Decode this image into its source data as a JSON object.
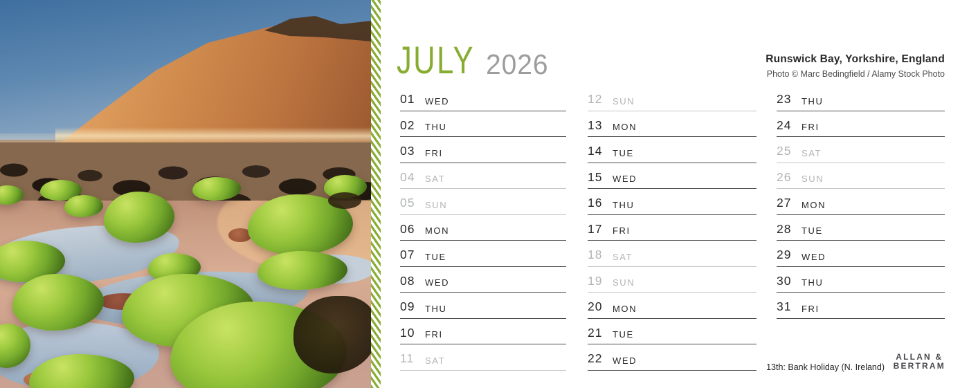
{
  "header": {
    "month": "JULY",
    "year": "2026",
    "location": "Runswick Bay, Yorkshire, England",
    "credit": "Photo © Marc Bedingfield / Alamy Stock Photo"
  },
  "calendar": {
    "columns": [
      {
        "days": [
          {
            "num": "01",
            "day": "WED",
            "weekend": false
          },
          {
            "num": "02",
            "day": "THU",
            "weekend": false
          },
          {
            "num": "03",
            "day": "FRI",
            "weekend": false
          },
          {
            "num": "04",
            "day": "SAT",
            "weekend": true
          },
          {
            "num": "05",
            "day": "SUN",
            "weekend": true
          },
          {
            "num": "06",
            "day": "MON",
            "weekend": false
          },
          {
            "num": "07",
            "day": "TUE",
            "weekend": false
          },
          {
            "num": "08",
            "day": "WED",
            "weekend": false
          },
          {
            "num": "09",
            "day": "THU",
            "weekend": false
          },
          {
            "num": "10",
            "day": "FRI",
            "weekend": false
          },
          {
            "num": "11",
            "day": "SAT",
            "weekend": true
          }
        ]
      },
      {
        "days": [
          {
            "num": "12",
            "day": "SUN",
            "weekend": true
          },
          {
            "num": "13",
            "day": "MON",
            "weekend": false
          },
          {
            "num": "14",
            "day": "TUE",
            "weekend": false
          },
          {
            "num": "15",
            "day": "WED",
            "weekend": false
          },
          {
            "num": "16",
            "day": "THU",
            "weekend": false
          },
          {
            "num": "17",
            "day": "FRI",
            "weekend": false
          },
          {
            "num": "18",
            "day": "SAT",
            "weekend": true
          },
          {
            "num": "19",
            "day": "SUN",
            "weekend": true
          },
          {
            "num": "20",
            "day": "MON",
            "weekend": false
          },
          {
            "num": "21",
            "day": "TUE",
            "weekend": false
          },
          {
            "num": "22",
            "day": "WED",
            "weekend": false
          }
        ]
      },
      {
        "days": [
          {
            "num": "23",
            "day": "THU",
            "weekend": false
          },
          {
            "num": "24",
            "day": "FRI",
            "weekend": false
          },
          {
            "num": "25",
            "day": "SAT",
            "weekend": true
          },
          {
            "num": "26",
            "day": "SUN",
            "weekend": true
          },
          {
            "num": "27",
            "day": "MON",
            "weekend": false
          },
          {
            "num": "28",
            "day": "TUE",
            "weekend": false
          },
          {
            "num": "29",
            "day": "WED",
            "weekend": false
          },
          {
            "num": "30",
            "day": "THU",
            "weekend": false
          },
          {
            "num": "31",
            "day": "FRI",
            "weekend": false
          }
        ]
      }
    ]
  },
  "footer": {
    "note": "13th: Bank Holiday (N. Ireland)",
    "brand_line1": "ALLAN &",
    "brand_line2": "BERTRAM"
  },
  "colors": {
    "accent_green": "#86ad30",
    "stitch_green": "#7cbd2e",
    "year_gray": "#9d9d9d",
    "text_dark": "#28282a",
    "text_muted": "#b1b3b5",
    "line_dark": "#4b4b4d",
    "line_muted": "#c4c5c7"
  }
}
